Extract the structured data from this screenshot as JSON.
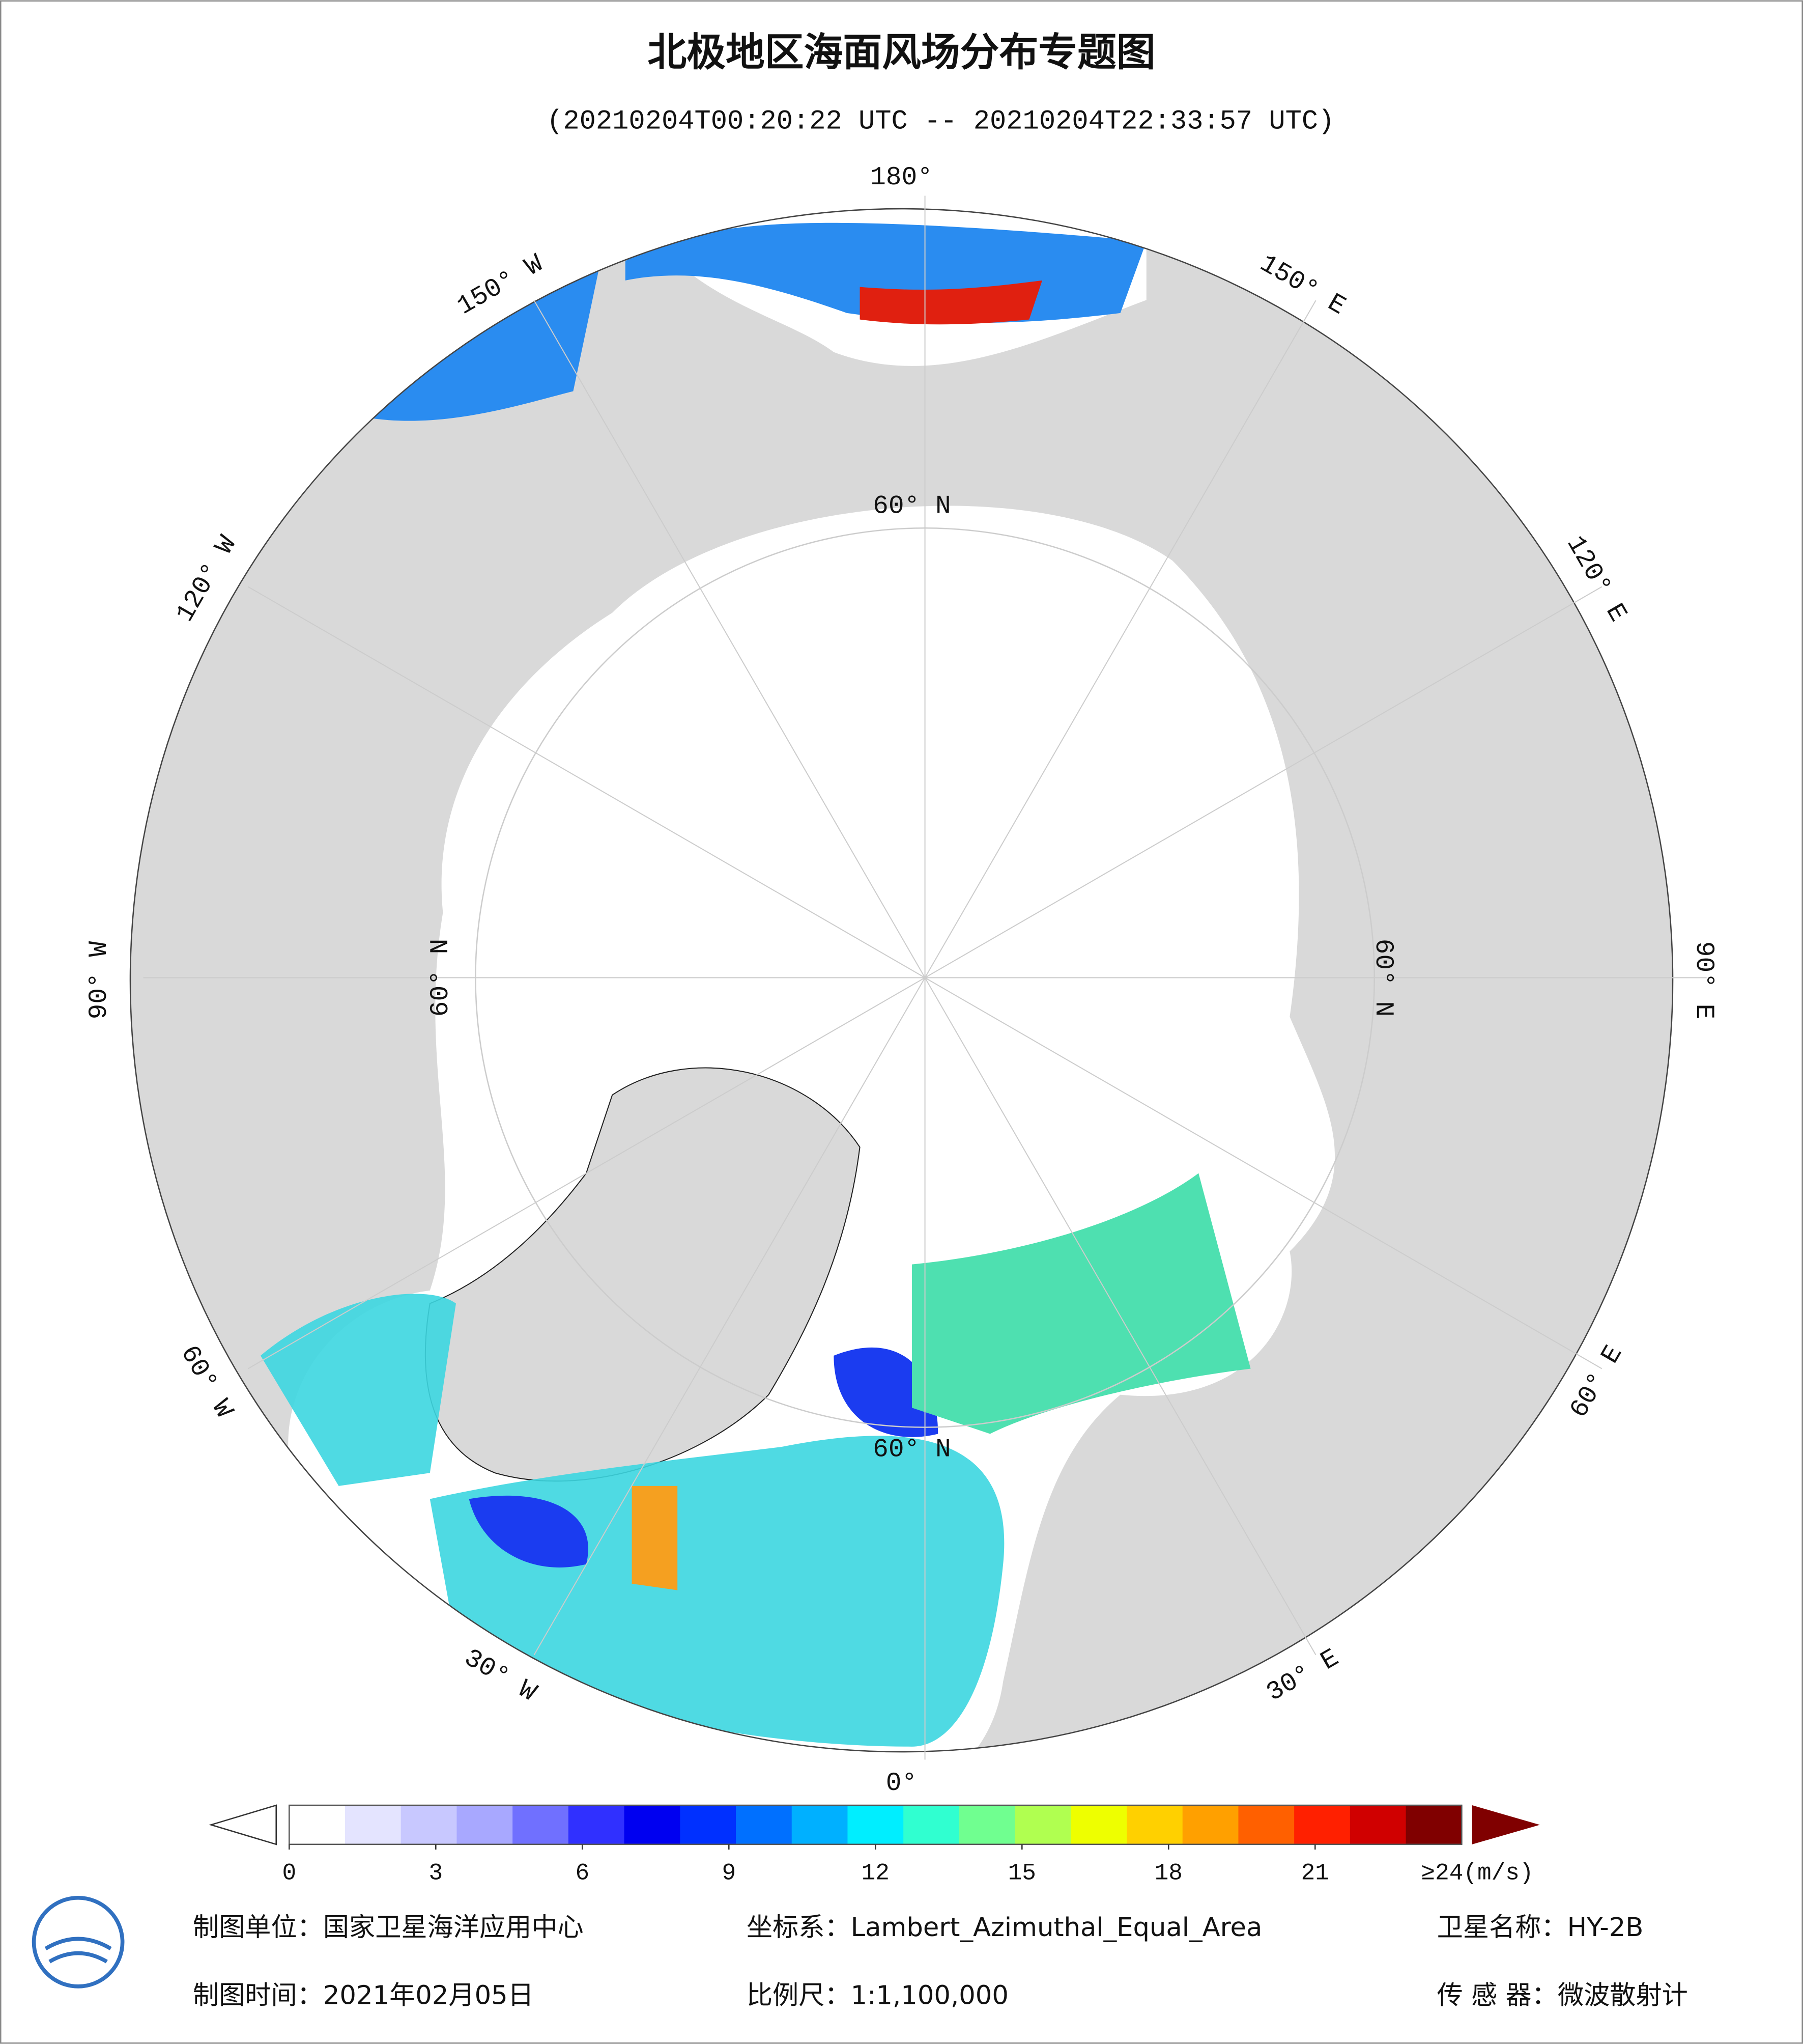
{
  "title": "北极地区海面风场分布专题图",
  "subtitle": "(20210204T00:20:22 UTC -- 20210204T22:33:57 UTC)",
  "longitude_labels": [
    "180°",
    "150° E",
    "120° E",
    "90° E",
    "60° E",
    "30° E",
    "0°",
    "30° W",
    "60° W",
    "90° W",
    "120° W",
    "150° W"
  ],
  "latitude_labels": [
    "60° N",
    "60° N",
    "60° N",
    "60° N"
  ],
  "colorbar": {
    "range": [
      0,
      24
    ],
    "ticks": [
      0,
      3,
      6,
      9,
      12,
      15,
      18,
      21
    ],
    "max_label": "≥24(m/s)",
    "colors": [
      "#ffffff",
      "#e4e4ff",
      "#c8c8ff",
      "#a8a8ff",
      "#7070ff",
      "#3030ff",
      "#0000f0",
      "#0030ff",
      "#0070ff",
      "#00b0ff",
      "#00eeff",
      "#30ffd0",
      "#70ff90",
      "#b0ff50",
      "#eeff00",
      "#ffd000",
      "#ffa000",
      "#ff6000",
      "#ff2000",
      "#d00000",
      "#800000"
    ]
  },
  "footer": {
    "unit": "制图单位：国家卫星海洋应用中心",
    "projection": "坐标系：Lambert_Azimuthal_Equal_Area",
    "satellite": "卫星名称：HY-2B",
    "date": "制图时间：2021年02月05日",
    "scale": "比例尺：1:1,100,000",
    "sensor": "传 感 器：微波散射计"
  }
}
